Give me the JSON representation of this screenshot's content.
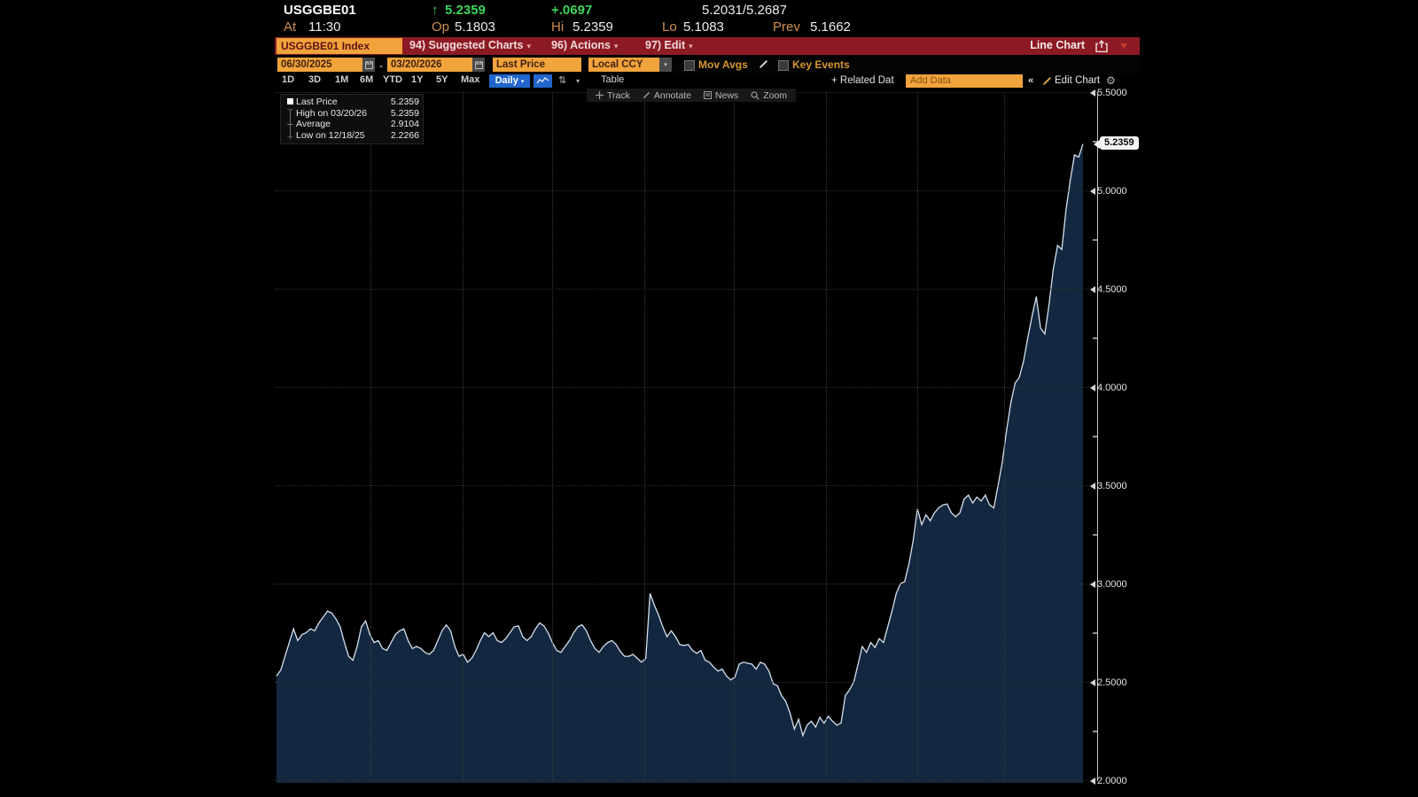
{
  "icons": {
    "up_arrow": "↑",
    "caret": "▾",
    "dash": "-",
    "chevrons": "«",
    "gear": "⚙",
    "up_down": "⇅",
    "plus_related": "+",
    "high_marker": "⊤",
    "avg_marker": "┼",
    "low_marker": "⊥"
  },
  "colors": {
    "background": "#000000",
    "menubar_red": "#8c1a24",
    "accent_orange": "#f1a33c",
    "accent_blue": "#2066cc",
    "up_green": "#3bd45a",
    "label_amber": "#cf8f52",
    "line": "#d6e1ee",
    "area_fill": "#132840"
  },
  "quote": {
    "ticker": "USGGBE01",
    "last": "5.2359",
    "change": "+.0697",
    "bid_ask": "5.2031/5.2687",
    "at_label": "At",
    "at_time": "11:30",
    "open_label": "Op",
    "open": "5.1803",
    "high_label": "Hi",
    "high": "5.2359",
    "low_label": "Lo",
    "low": "5.1083",
    "prev_label": "Prev",
    "prev": "5.1662"
  },
  "menubar": {
    "security": "USGGBE01 Index",
    "items": [
      {
        "label": "94) Suggested Charts"
      },
      {
        "label": "96) Actions"
      },
      {
        "label": "97) Edit"
      }
    ],
    "chart_type": "Line Chart"
  },
  "settings": {
    "date_from": "06/30/2025",
    "date_to": "03/20/2026",
    "range_separator": "-",
    "field": "Last Price",
    "currency": "Local CCY",
    "mov_avgs_label": "Mov Avgs",
    "key_events_label": "Key Events"
  },
  "toolbar": {
    "periods": [
      "1D",
      "3D",
      "1M",
      "6M",
      "YTD",
      "1Y",
      "5Y",
      "Max"
    ],
    "frequency": "Daily",
    "table_label": "Table",
    "related_label": "+ Related Dat",
    "add_data_placeholder": "Add Data",
    "edit_chart_label": "Edit Chart"
  },
  "chart": {
    "legend": [
      {
        "label": "Last Price",
        "value": "5.2359"
      },
      {
        "label": "High on 03/20/26",
        "value": "5.2359"
      },
      {
        "label": "Average",
        "value": "2.9104"
      },
      {
        "label": "Low on 12/18/25",
        "value": "2.2266"
      }
    ],
    "overlay_buttons": [
      "Track",
      "Annotate",
      "News",
      "Zoom"
    ],
    "y_ticks": [
      "5.5000",
      "5.0000",
      "4.5000",
      "4.0000",
      "3.5000",
      "3.0000",
      "2.5000",
      "2.0000"
    ],
    "last_badge": "5.2359"
  },
  "chart_data": {
    "type": "area",
    "title": "USGGBE01 Index, Last Price, Daily",
    "x_start": "06/30/2025",
    "x_end": "03/20/2026",
    "frequency": "daily",
    "ylim": [
      2.0,
      5.5
    ],
    "y_tick_step": 0.5,
    "grid": "dotted",
    "legend_position": "top-left",
    "stats": {
      "last": 5.2359,
      "high": 5.2359,
      "high_date": "03/20/26",
      "average": 2.9104,
      "low": 2.2266,
      "low_date": "12/18/25"
    },
    "values": [
      2.53,
      2.56,
      2.63,
      2.7,
      2.77,
      2.71,
      2.74,
      2.75,
      2.77,
      2.76,
      2.8,
      2.83,
      2.86,
      2.85,
      2.82,
      2.78,
      2.7,
      2.63,
      2.61,
      2.68,
      2.78,
      2.81,
      2.74,
      2.7,
      2.71,
      2.67,
      2.66,
      2.7,
      2.74,
      2.76,
      2.77,
      2.71,
      2.67,
      2.68,
      2.67,
      2.65,
      2.64,
      2.66,
      2.71,
      2.76,
      2.79,
      2.76,
      2.68,
      2.63,
      2.64,
      2.6,
      2.62,
      2.66,
      2.71,
      2.75,
      2.73,
      2.75,
      2.71,
      2.7,
      2.72,
      2.75,
      2.78,
      2.785,
      2.73,
      2.71,
      2.73,
      2.77,
      2.8,
      2.785,
      2.75,
      2.7,
      2.66,
      2.65,
      2.68,
      2.71,
      2.75,
      2.78,
      2.79,
      2.76,
      2.71,
      2.67,
      2.65,
      2.68,
      2.7,
      2.71,
      2.69,
      2.655,
      2.63,
      2.63,
      2.64,
      2.62,
      2.6,
      2.62,
      2.95,
      2.89,
      2.84,
      2.78,
      2.73,
      2.76,
      2.73,
      2.69,
      2.685,
      2.69,
      2.66,
      2.645,
      2.66,
      2.61,
      2.6,
      2.575,
      2.555,
      2.565,
      2.53,
      2.51,
      2.525,
      2.59,
      2.6,
      2.595,
      2.59,
      2.565,
      2.6,
      2.59,
      2.555,
      2.49,
      2.48,
      2.43,
      2.4,
      2.34,
      2.26,
      2.31,
      2.2266,
      2.28,
      2.3,
      2.27,
      2.32,
      2.29,
      2.325,
      2.3,
      2.28,
      2.29,
      2.43,
      2.46,
      2.5,
      2.59,
      2.68,
      2.65,
      2.7,
      2.675,
      2.72,
      2.7,
      2.78,
      2.86,
      2.95,
      3.0,
      3.01,
      3.1,
      3.22,
      3.38,
      3.3,
      3.35,
      3.32,
      3.36,
      3.385,
      3.4,
      3.405,
      3.36,
      3.34,
      3.36,
      3.43,
      3.45,
      3.41,
      3.44,
      3.42,
      3.45,
      3.4,
      3.385,
      3.5,
      3.62,
      3.78,
      3.92,
      4.02,
      4.05,
      4.13,
      4.25,
      4.36,
      4.46,
      4.3,
      4.27,
      4.42,
      4.6,
      4.72,
      4.7,
      4.9,
      5.05,
      5.18,
      5.17,
      5.2359
    ]
  }
}
